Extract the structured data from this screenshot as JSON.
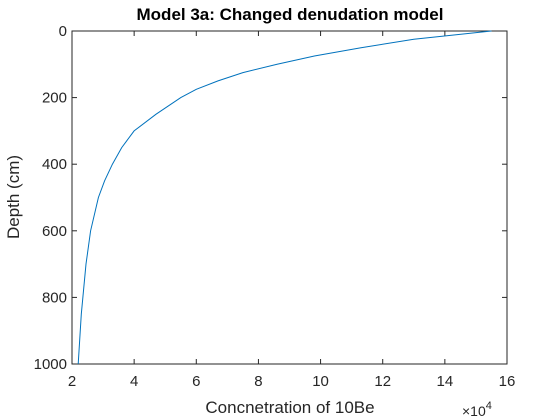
{
  "chart_data": {
    "type": "line",
    "title": "Model 3a: Changed denudation model",
    "xlabel": "Concnetration of 10Be",
    "ylabel": "Depth (cm)",
    "x_exponent_label": "×10",
    "x_exponent_power": "4",
    "xlim": [
      2,
      16
    ],
    "ylim": [
      0,
      1000
    ],
    "y_reversed": true,
    "grid": false,
    "x_ticks": [
      2,
      4,
      6,
      8,
      10,
      12,
      14,
      16
    ],
    "x_tick_labels": [
      "2",
      "4",
      "6",
      "8",
      "10",
      "12",
      "14",
      "16"
    ],
    "y_ticks": [
      0,
      200,
      400,
      600,
      800,
      1000
    ],
    "y_tick_labels": [
      "0",
      "200",
      "400",
      "600",
      "800",
      "1000"
    ],
    "series": [
      {
        "color": "#0072BD",
        "x": [
          15.5,
          13.0,
          11.3,
          9.8,
          8.6,
          7.5,
          6.7,
          6.0,
          5.5,
          4.7,
          4.0,
          3.6,
          3.3,
          3.05,
          2.85,
          2.6,
          2.45,
          2.3,
          2.2
        ],
        "y": [
          0,
          25,
          50,
          75,
          100,
          125,
          150,
          175,
          200,
          250,
          300,
          350,
          400,
          450,
          500,
          600,
          700,
          850,
          1000
        ]
      }
    ]
  }
}
